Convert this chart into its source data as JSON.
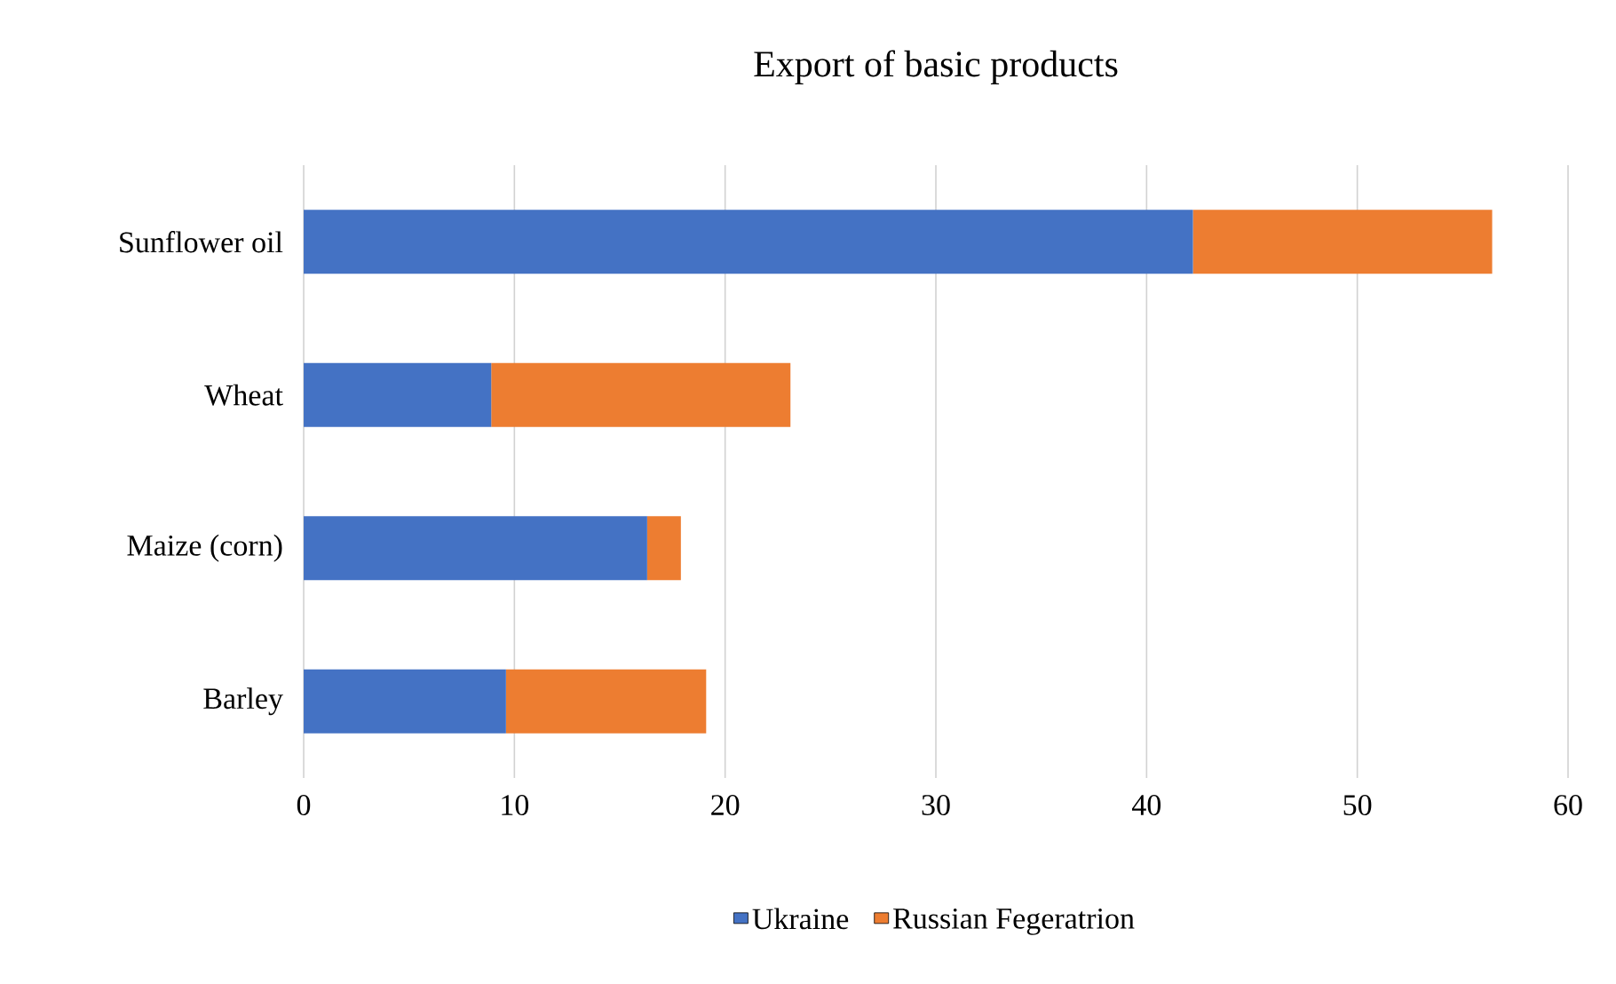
{
  "chart_data": {
    "type": "bar",
    "title": "Export of basic products",
    "orientation": "horizontal",
    "stacked": true,
    "categories": [
      "Sunflower oil",
      "Wheat",
      "Maize (corn)",
      "Barley"
    ],
    "series": [
      {
        "name": "Ukraine",
        "color": "#4472c4",
        "values": [
          42.2,
          8.9,
          16.3,
          9.6
        ]
      },
      {
        "name": "Russian Fegeratrion",
        "color": "#ed7d31",
        "values": [
          14.2,
          14.2,
          1.6,
          9.5
        ]
      }
    ],
    "xlim": [
      0,
      60
    ],
    "xticks": [
      0,
      10,
      20,
      30,
      40,
      50,
      60
    ],
    "grid": "x",
    "legend": "bottom"
  }
}
